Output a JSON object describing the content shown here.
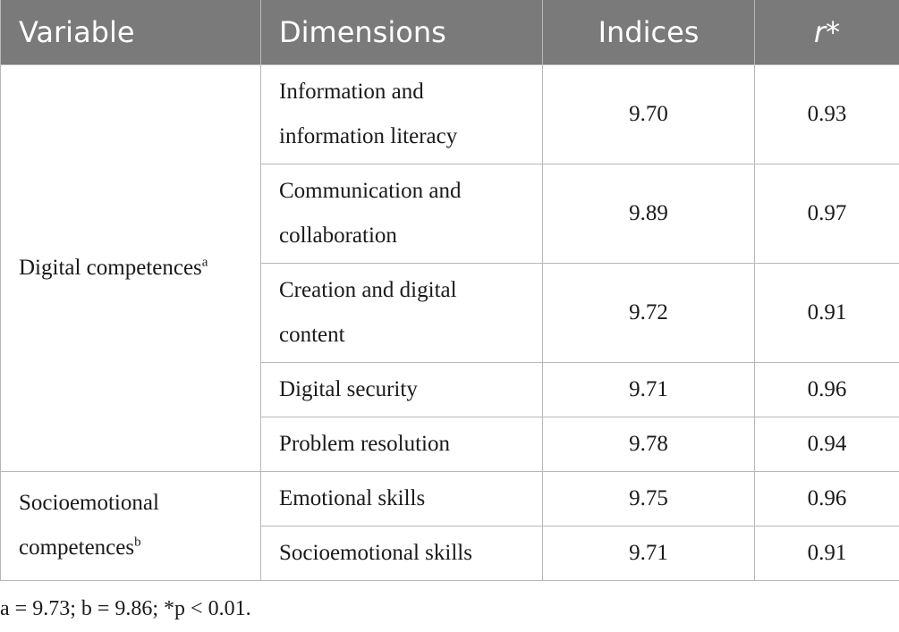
{
  "table": {
    "headers": {
      "variable": "Variable",
      "dimensions": "Dimensions",
      "indices": "Indices",
      "r": "r*"
    },
    "groups": [
      {
        "variable": "Digital competences",
        "variable_sup": "a",
        "rows": [
          {
            "dimension": "Information and information literacy",
            "index": "9.70",
            "r": "0.93"
          },
          {
            "dimension": "Communication and collaboration",
            "index": "9.89",
            "r": "0.97"
          },
          {
            "dimension": "Creation and digital content",
            "index": "9.72",
            "r": "0.91"
          },
          {
            "dimension": "Digital security",
            "index": "9.71",
            "r": "0.96"
          },
          {
            "dimension": "Problem resolution",
            "index": "9.78",
            "r": "0.94"
          }
        ]
      },
      {
        "variable": "Socioemotional competences",
        "variable_sup": "b",
        "rows": [
          {
            "dimension": "Emotional skills",
            "index": "9.75",
            "r": "0.96"
          },
          {
            "dimension": "Socioemotional skills",
            "index": "9.71",
            "r": "0.91"
          }
        ]
      }
    ]
  },
  "footnote": "a = 9.73; b = 9.86; *p < 0.01."
}
